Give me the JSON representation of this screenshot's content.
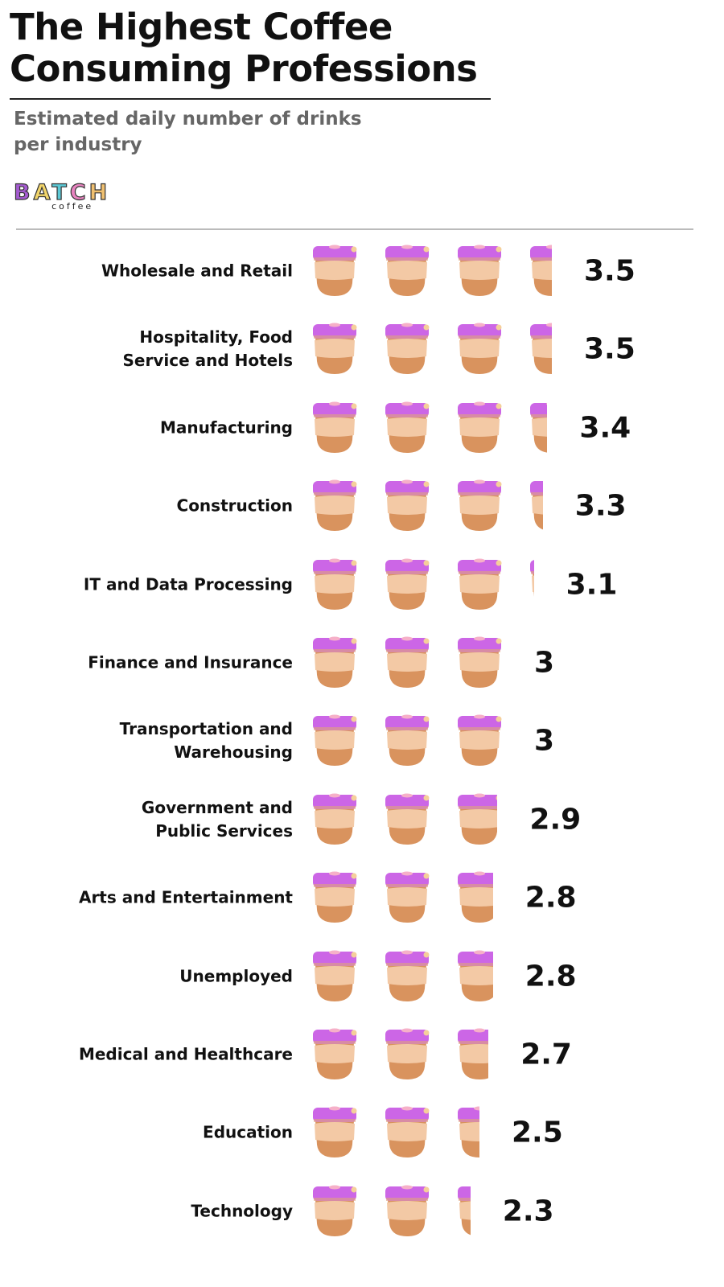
{
  "header": {
    "title_line1": "The Highest Coffee",
    "title_line2": "Consuming Professions",
    "subtitle_line1": "Estimated daily number of drinks",
    "subtitle_line2": "per industry"
  },
  "logo": {
    "word": "BATCH",
    "sub": "coffee",
    "letter_colors": [
      "#a45bd0",
      "#f2d56b",
      "#5cc9d6",
      "#e884c0",
      "#f0c070"
    ]
  },
  "colors": {
    "lid": "#cc66e6",
    "sleeve": "#f3c9a5",
    "cup": "#d9935e",
    "rim": "#e0a37a"
  },
  "chart_data": {
    "type": "pictogram",
    "unit_icon": "coffee-cup-icon",
    "categories": [
      [
        "Wholesale and Retail"
      ],
      [
        "Hospitality, Food",
        "Service and Hotels"
      ],
      [
        "Manufacturing"
      ],
      [
        "Construction"
      ],
      [
        "IT and Data Processing"
      ],
      [
        "Finance and Insurance"
      ],
      [
        "Transportation and",
        "Warehousing"
      ],
      [
        "Government and",
        "Public Services"
      ],
      [
        "Arts and Entertainment"
      ],
      [
        "Unemployed"
      ],
      [
        "Medical and Healthcare"
      ],
      [
        "Education"
      ],
      [
        "Technology"
      ]
    ],
    "values": [
      3.5,
      3.5,
      3.4,
      3.3,
      3.1,
      3,
      3,
      2.9,
      2.8,
      2.8,
      2.7,
      2.5,
      2.3
    ],
    "value_labels": [
      "3.5",
      "3.5",
      "3.4",
      "3.3",
      "3.1",
      "3",
      "3",
      "2.9",
      "2.8",
      "2.8",
      "2.7",
      "2.5",
      "2.3"
    ]
  }
}
